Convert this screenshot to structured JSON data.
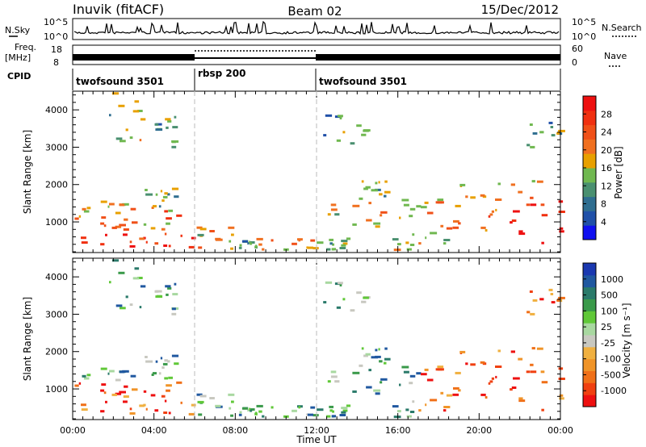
{
  "header": {
    "station": "Inuvik (fitACF)",
    "beam": "Beam 02",
    "date": "15/Dec/2012"
  },
  "panels": {
    "nsky_label": "N.Sky",
    "nsky_ticks": [
      "10^5",
      "10^0"
    ],
    "nsearch_label": "N.Search",
    "freq_label": "Freq.",
    "freq_unit": "[MHz]",
    "freq_ticks": [
      "18",
      "8"
    ],
    "nave_label": "Nave",
    "nave_ticks": [
      "60",
      "0"
    ],
    "cpid_label": "CPID",
    "cpid_segments": [
      {
        "label": "twofsound 3501",
        "start": "00:00",
        "end": "06:00"
      },
      {
        "label": "rbsp 200",
        "start": "06:00",
        "end": "12:00"
      },
      {
        "label": "twofsound 3501",
        "start": "12:00",
        "end": "24:00"
      }
    ]
  },
  "colors": {
    "power": [
      "#1010f0",
      "#2050a8",
      "#2f6e90",
      "#4a9070",
      "#70b850",
      "#e8a000",
      "#f07020",
      "#f05018",
      "#f03010",
      "#ee1010"
    ],
    "velocity": [
      "#ee1010",
      "#f04010",
      "#f07018",
      "#f09428",
      "#f0b040",
      "#c8c8c0",
      "#a8d8a0",
      "#60c838",
      "#3a9a4a",
      "#2a7a6a",
      "#2058a0",
      "#1a38b0"
    ]
  },
  "chart_data": [
    {
      "type": "heatmap",
      "name": "power",
      "xlabel": "Time UT",
      "ylabel": "Slant Range [km]",
      "x_ticks": [
        "00:00",
        "04:00",
        "08:00",
        "12:00",
        "16:00",
        "20:00",
        "00:00"
      ],
      "y_ticks": [
        1000,
        2000,
        3000,
        4000
      ],
      "ylim": [
        180,
        4500
      ],
      "xlim_hours": [
        0,
        24
      ],
      "colorbar_label": "Power [dB]",
      "colorbar_ticks": [
        4,
        8,
        12,
        16,
        20,
        24,
        28
      ]
    },
    {
      "type": "heatmap",
      "name": "velocity",
      "xlabel": "Time UT",
      "ylabel": "Slant Range [km]",
      "x_ticks": [
        "00:00",
        "04:00",
        "08:00",
        "12:00",
        "16:00",
        "20:00",
        "00:00"
      ],
      "y_ticks": [
        1000,
        2000,
        3000,
        4000
      ],
      "ylim": [
        180,
        4500
      ],
      "xlim_hours": [
        0,
        24
      ],
      "colorbar_label": "Velocity [m s⁻¹]",
      "colorbar_ticks": [
        1000,
        500,
        100,
        25,
        -25,
        -100,
        -500,
        -1000
      ]
    }
  ]
}
